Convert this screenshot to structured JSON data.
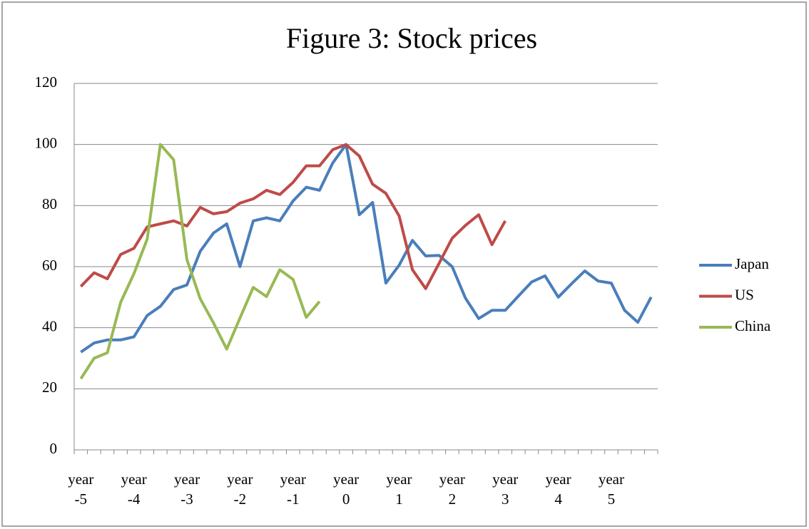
{
  "chart_data": {
    "type": "line",
    "title": "Figure 3: Stock prices",
    "categories": [
      "year -5",
      null,
      null,
      null,
      "year -4",
      null,
      null,
      null,
      "year -3",
      null,
      null,
      null,
      "year -2",
      null,
      null,
      null,
      "year -1",
      null,
      null,
      null,
      "year 0",
      null,
      null,
      null,
      "year 1",
      null,
      null,
      null,
      "year 2",
      null,
      null,
      null,
      "year 3",
      null,
      null,
      null,
      "year 4",
      null,
      null,
      null,
      "year 5",
      null,
      null,
      null
    ],
    "series": [
      {
        "name": "Japan",
        "color": "#4a7ebb",
        "values": [
          32,
          35,
          36,
          36,
          37,
          44,
          47,
          52.5,
          54,
          65,
          71,
          74,
          60,
          75,
          76,
          75,
          81.5,
          86,
          85,
          94,
          100,
          77,
          81,
          54.6,
          60.5,
          68.6,
          63.5,
          63.7,
          60,
          49.7,
          43,
          45.7,
          45.7,
          50.4,
          55,
          57,
          50,
          54.4,
          58.6,
          55.3,
          54.6,
          45.7,
          41.8,
          50
        ]
      },
      {
        "name": "US",
        "color": "#be4b48",
        "values": [
          53.5,
          58,
          56,
          64,
          66,
          73,
          74,
          75,
          73.3,
          79.4,
          77.3,
          78,
          80.8,
          82.2,
          85,
          83.6,
          87.6,
          93,
          93,
          98.3,
          100,
          96.2,
          87,
          84,
          76.6,
          59,
          52.8,
          61,
          69.3,
          73.5,
          77,
          67.2,
          75,
          null,
          null,
          null,
          null,
          null,
          null,
          null,
          null,
          null,
          null,
          null
        ]
      },
      {
        "name": "China",
        "color": "#98b954",
        "values": [
          23.3,
          30,
          31.8,
          48.3,
          57.7,
          69,
          100,
          95,
          62.3,
          49.5,
          41.6,
          33,
          43.2,
          53.2,
          50.2,
          59,
          55.8,
          43.4,
          48.6,
          null,
          null,
          null,
          null,
          null,
          null,
          null,
          null,
          null,
          null,
          null,
          null,
          null,
          null,
          null,
          null,
          null,
          null,
          null,
          null,
          null,
          null,
          null,
          null,
          null
        ]
      }
    ],
    "ylim": [
      0,
      120
    ],
    "yticks": [
      0,
      20,
      40,
      60,
      80,
      100,
      120
    ],
    "grid": true,
    "legend": "right"
  }
}
